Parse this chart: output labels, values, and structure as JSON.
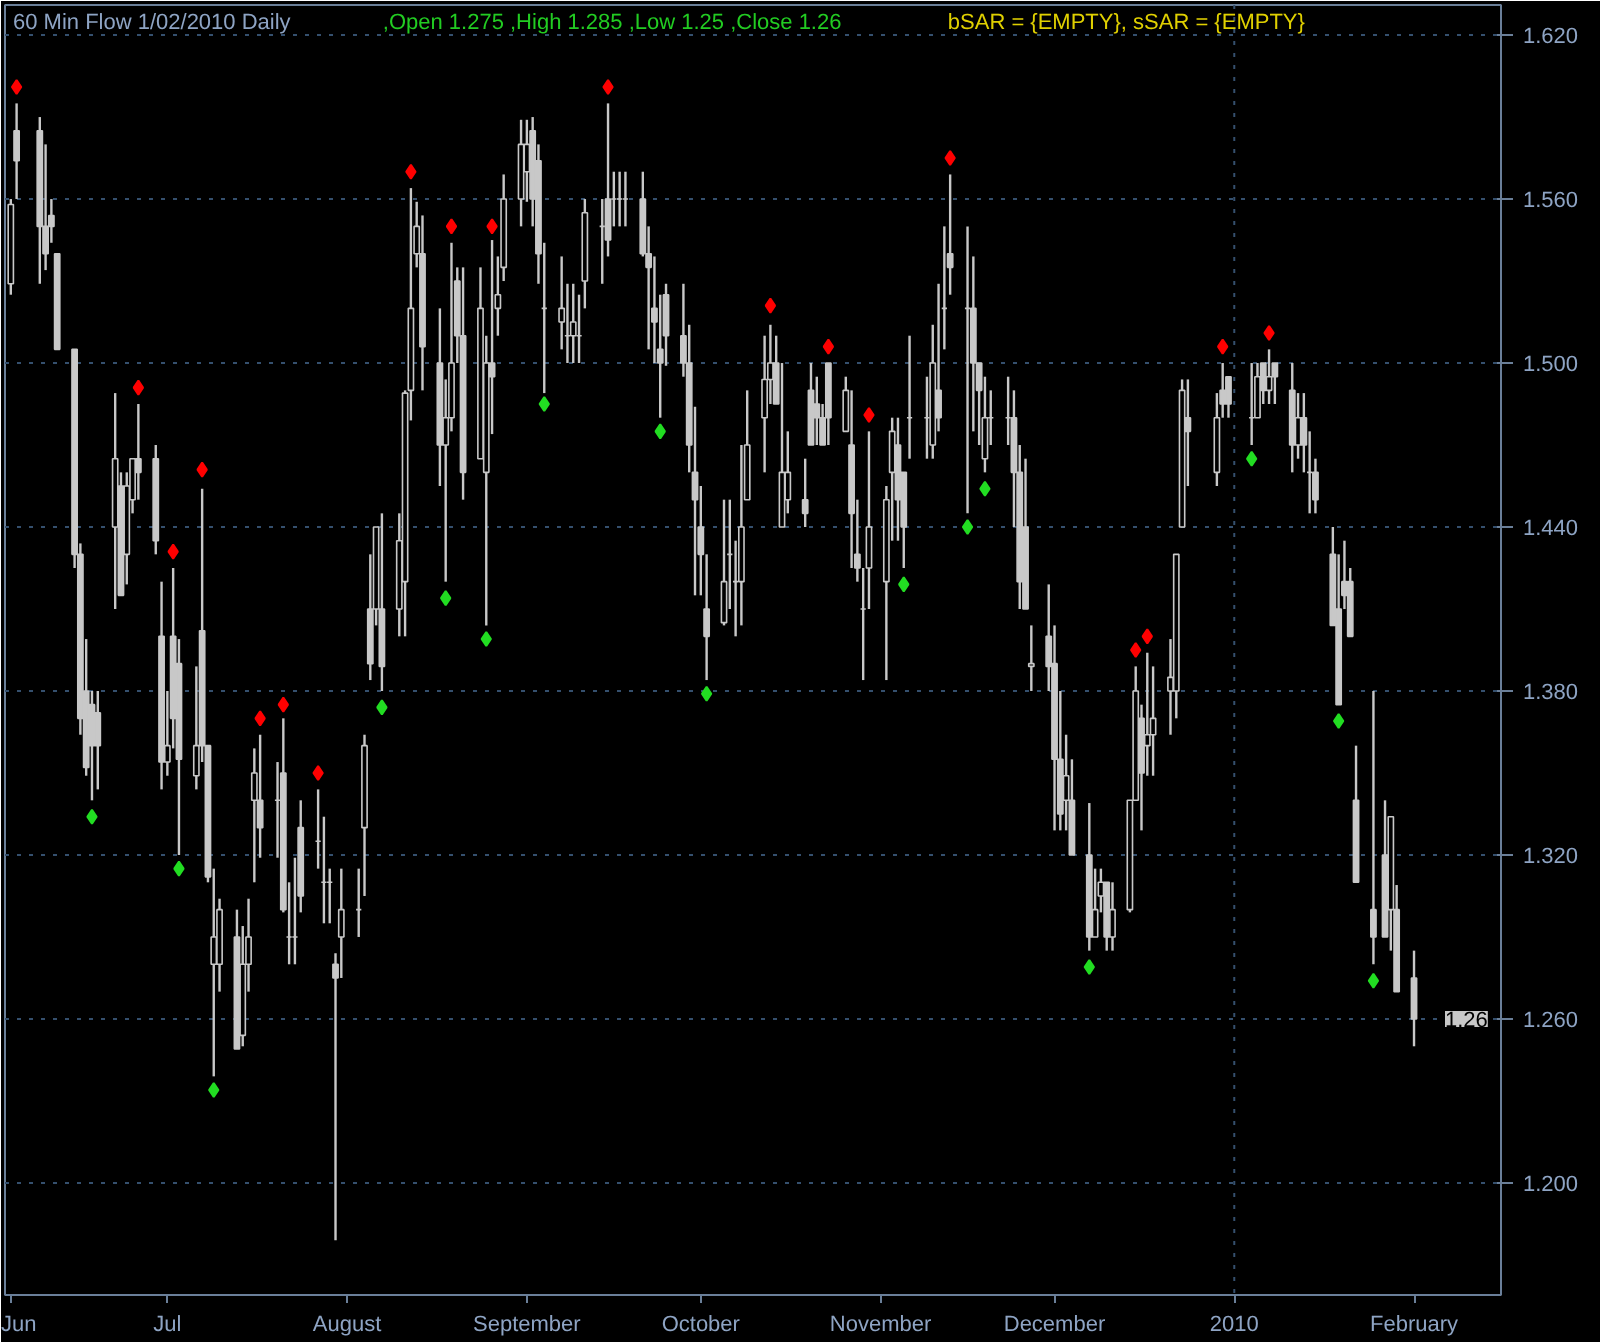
{
  "chart_data": {
    "type": "candlestick",
    "title": "60 Min Flow  1/02/2010  Daily",
    "subtitle": ",Open 1.275 ,High 1.285 ,Low 1.25 ,Close 1.26",
    "annotations": [
      "bSAR = {EMPTY}, sSAR = {EMPTY}",
      "1.26"
    ],
    "xlim": [
      "2009-06-03",
      "2010-02-16"
    ],
    "color": "#c8c8c8",
    "x": [
      "2009-06-04",
      "2009-06-05",
      "2009-06-09",
      "2009-06-10",
      "2009-06-11",
      "2009-06-12",
      "2009-06-15",
      "2009-06-16",
      "2009-06-17",
      "2009-06-18",
      "2009-06-19",
      "2009-06-22",
      "2009-06-23",
      "2009-06-24",
      "2009-06-25",
      "2009-06-26",
      "2009-06-29",
      "2009-06-30",
      "2009-07-01",
      "2009-07-02",
      "2009-07-03",
      "2009-07-06",
      "2009-07-07",
      "2009-07-08",
      "2009-07-09",
      "2009-07-10",
      "2009-07-13",
      "2009-07-14",
      "2009-07-15",
      "2009-07-16",
      "2009-07-17",
      "2009-07-20",
      "2009-07-21",
      "2009-07-22",
      "2009-07-23",
      "2009-07-24",
      "2009-07-27",
      "2009-07-28",
      "2009-07-29",
      "2009-07-30",
      "2009-07-31",
      "2009-08-03",
      "2009-08-04",
      "2009-08-05",
      "2009-08-06",
      "2009-08-07",
      "2009-08-10",
      "2009-08-11",
      "2009-08-12",
      "2009-08-13",
      "2009-08-14",
      "2009-08-17",
      "2009-08-18",
      "2009-08-19",
      "2009-08-20",
      "2009-08-21",
      "2009-08-24",
      "2009-08-25",
      "2009-08-26",
      "2009-08-27",
      "2009-08-28",
      "2009-08-31",
      "2009-09-01",
      "2009-09-02",
      "2009-09-03",
      "2009-09-04",
      "2009-09-07",
      "2009-09-08",
      "2009-09-09",
      "2009-09-10",
      "2009-09-11",
      "2009-09-14",
      "2009-09-15",
      "2009-09-16",
      "2009-09-17",
      "2009-09-18",
      "2009-09-21",
      "2009-09-22",
      "2009-09-23",
      "2009-09-24",
      "2009-09-25",
      "2009-09-28",
      "2009-09-29",
      "2009-09-30",
      "2009-10-01",
      "2009-10-02",
      "2009-10-05",
      "2009-10-06",
      "2009-10-07",
      "2009-10-08",
      "2009-10-09",
      "2009-10-12",
      "2009-10-13",
      "2009-10-14",
      "2009-10-15",
      "2009-10-16",
      "2009-10-19",
      "2009-10-20",
      "2009-10-21",
      "2009-10-22",
      "2009-10-23",
      "2009-10-26",
      "2009-10-27",
      "2009-10-28",
      "2009-10-29",
      "2009-10-30",
      "2009-11-02",
      "2009-11-03",
      "2009-11-04",
      "2009-11-05",
      "2009-11-06",
      "2009-11-09",
      "2009-11-10",
      "2009-11-11",
      "2009-11-12",
      "2009-11-13",
      "2009-11-16",
      "2009-11-17",
      "2009-11-18",
      "2009-11-19",
      "2009-11-20",
      "2009-11-23",
      "2009-11-24",
      "2009-11-25",
      "2009-11-26",
      "2009-11-27",
      "2009-11-30",
      "2009-12-01",
      "2009-12-02",
      "2009-12-03",
      "2009-12-04",
      "2009-12-07",
      "2009-12-08",
      "2009-12-09",
      "2009-12-10",
      "2009-12-11",
      "2009-12-14",
      "2009-12-15",
      "2009-12-16",
      "2009-12-17",
      "2009-12-18",
      "2009-12-21",
      "2009-12-22",
      "2009-12-23",
      "2009-12-24",
      "2009-12-29",
      "2009-12-30",
      "2009-12-31",
      "2010-01-04",
      "2010-01-05",
      "2010-01-06",
      "2010-01-07",
      "2010-01-08",
      "2010-01-11",
      "2010-01-12",
      "2010-01-13",
      "2010-01-14",
      "2010-01-15",
      "2010-01-18",
      "2010-01-19",
      "2010-01-20",
      "2010-01-21",
      "2010-01-22",
      "2010-01-25",
      "2010-01-27",
      "2010-01-28",
      "2010-01-29",
      "2010-02-01"
    ],
    "ohlc": [
      [
        1.529,
        1.56,
        1.525,
        1.558
      ],
      [
        1.585,
        1.595,
        1.56,
        1.574
      ],
      [
        1.585,
        1.59,
        1.529,
        1.55
      ],
      [
        1.55,
        1.58,
        1.534,
        1.54
      ],
      [
        1.554,
        1.56,
        1.544,
        1.55
      ],
      [
        1.54,
        1.54,
        1.505,
        1.505
      ],
      [
        1.505,
        1.505,
        1.425,
        1.43
      ],
      [
        1.43,
        1.434,
        1.364,
        1.37
      ],
      [
        1.38,
        1.399,
        1.349,
        1.352
      ],
      [
        1.375,
        1.38,
        1.34,
        1.36
      ],
      [
        1.372,
        1.38,
        1.344,
        1.36
      ],
      [
        1.44,
        1.489,
        1.41,
        1.465
      ],
      [
        1.455,
        1.46,
        1.415,
        1.415
      ],
      [
        1.43,
        1.46,
        1.419,
        1.455
      ],
      [
        1.45,
        1.465,
        1.445,
        1.465
      ],
      [
        1.465,
        1.485,
        1.45,
        1.46
      ],
      [
        1.465,
        1.47,
        1.43,
        1.435
      ],
      [
        1.4,
        1.42,
        1.344,
        1.354
      ],
      [
        1.354,
        1.38,
        1.349,
        1.36
      ],
      [
        1.4,
        1.425,
        1.359,
        1.37
      ],
      [
        1.39,
        1.399,
        1.32,
        1.355
      ],
      [
        1.349,
        1.389,
        1.344,
        1.36
      ],
      [
        1.402,
        1.454,
        1.354,
        1.36
      ],
      [
        1.36,
        1.36,
        1.31,
        1.312
      ],
      [
        1.28,
        1.315,
        1.239,
        1.29
      ],
      [
        1.28,
        1.304,
        1.27,
        1.3
      ],
      [
        1.29,
        1.3,
        1.249,
        1.249
      ],
      [
        1.254,
        1.294,
        1.25,
        1.28
      ],
      [
        1.28,
        1.304,
        1.27,
        1.29
      ],
      [
        1.34,
        1.359,
        1.31,
        1.35
      ],
      [
        1.34,
        1.364,
        1.319,
        1.33
      ],
      [
        1.34,
        1.354,
        1.319,
        1.34
      ],
      [
        1.35,
        1.37,
        1.299,
        1.3
      ],
      [
        1.29,
        1.31,
        1.28,
        1.29
      ],
      [
        1.29,
        1.319,
        1.28,
        1.29
      ],
      [
        1.33,
        1.34,
        1.299,
        1.305
      ],
      [
        1.325,
        1.344,
        1.315,
        1.325
      ],
      [
        1.31,
        1.334,
        1.295,
        1.31
      ],
      [
        1.31,
        1.315,
        1.295,
        1.31
      ],
      [
        1.28,
        1.284,
        1.179,
        1.275
      ],
      [
        1.29,
        1.315,
        1.275,
        1.3
      ],
      [
        1.3,
        1.315,
        1.29,
        1.3
      ],
      [
        1.33,
        1.364,
        1.305,
        1.36
      ],
      [
        1.41,
        1.43,
        1.384,
        1.39
      ],
      [
        1.41,
        1.44,
        1.404,
        1.44
      ],
      [
        1.41,
        1.445,
        1.38,
        1.389
      ],
      [
        1.41,
        1.445,
        1.4,
        1.435
      ],
      [
        1.42,
        1.49,
        1.4,
        1.489
      ],
      [
        1.49,
        1.564,
        1.479,
        1.52
      ],
      [
        1.54,
        1.559,
        1.535,
        1.55
      ],
      [
        1.54,
        1.554,
        1.49,
        1.506
      ],
      [
        1.5,
        1.52,
        1.455,
        1.47
      ],
      [
        1.47,
        1.494,
        1.42,
        1.48
      ],
      [
        1.48,
        1.544,
        1.475,
        1.5
      ],
      [
        1.53,
        1.535,
        1.5,
        1.51
      ],
      [
        1.51,
        1.535,
        1.45,
        1.46
      ],
      [
        1.465,
        1.535,
        1.465,
        1.52
      ],
      [
        1.46,
        1.51,
        1.404,
        1.5
      ],
      [
        1.5,
        1.545,
        1.474,
        1.495
      ],
      [
        1.52,
        1.539,
        1.51,
        1.525
      ],
      [
        1.535,
        1.569,
        1.53,
        1.56
      ],
      [
        1.56,
        1.589,
        1.55,
        1.58
      ],
      [
        1.57,
        1.589,
        1.559,
        1.58
      ],
      [
        1.585,
        1.59,
        1.55,
        1.56
      ],
      [
        1.574,
        1.58,
        1.529,
        1.54
      ],
      [
        1.52,
        1.544,
        1.489,
        1.52
      ],
      [
        1.515,
        1.539,
        1.505,
        1.52
      ],
      [
        1.51,
        1.529,
        1.5,
        1.51
      ],
      [
        1.51,
        1.529,
        1.5,
        1.515
      ],
      [
        1.51,
        1.525,
        1.5,
        1.51
      ],
      [
        1.53,
        1.56,
        1.52,
        1.555
      ],
      [
        1.55,
        1.56,
        1.529,
        1.55
      ],
      [
        1.56,
        1.595,
        1.539,
        1.545
      ],
      [
        1.56,
        1.57,
        1.55,
        1.56
      ],
      [
        1.56,
        1.57,
        1.55,
        1.56
      ],
      [
        1.56,
        1.57,
        1.55,
        1.56
      ],
      [
        1.56,
        1.57,
        1.539,
        1.54
      ],
      [
        1.54,
        1.55,
        1.505,
        1.535
      ],
      [
        1.52,
        1.539,
        1.5,
        1.515
      ],
      [
        1.505,
        1.525,
        1.48,
        1.5
      ],
      [
        1.525,
        1.529,
        1.499,
        1.51
      ],
      [
        1.51,
        1.529,
        1.495,
        1.5
      ],
      [
        1.5,
        1.514,
        1.46,
        1.47
      ],
      [
        1.46,
        1.484,
        1.415,
        1.45
      ],
      [
        1.44,
        1.455,
        1.415,
        1.43
      ],
      [
        1.41,
        1.43,
        1.384,
        1.4
      ],
      [
        1.405,
        1.45,
        1.404,
        1.42
      ],
      [
        1.43,
        1.45,
        1.41,
        1.43
      ],
      [
        1.42,
        1.435,
        1.4,
        1.42
      ],
      [
        1.42,
        1.47,
        1.404,
        1.44
      ],
      [
        1.45,
        1.49,
        1.45,
        1.47
      ],
      [
        1.48,
        1.51,
        1.46,
        1.494
      ],
      [
        1.494,
        1.514,
        1.485,
        1.5
      ],
      [
        1.5,
        1.51,
        1.485,
        1.485
      ],
      [
        1.44,
        1.5,
        1.44,
        1.46
      ],
      [
        1.45,
        1.475,
        1.445,
        1.46
      ],
      [
        1.45,
        1.465,
        1.44,
        1.445
      ],
      [
        1.49,
        1.5,
        1.47,
        1.47
      ],
      [
        1.485,
        1.495,
        1.47,
        1.48
      ],
      [
        1.48,
        1.485,
        1.47,
        1.47
      ],
      [
        1.5,
        1.5,
        1.47,
        1.48
      ],
      [
        1.475,
        1.495,
        1.475,
        1.49
      ],
      [
        1.47,
        1.49,
        1.425,
        1.445
      ],
      [
        1.43,
        1.45,
        1.42,
        1.425
      ],
      [
        1.41,
        1.425,
        1.384,
        1.41
      ],
      [
        1.425,
        1.475,
        1.41,
        1.44
      ],
      [
        1.42,
        1.455,
        1.384,
        1.45
      ],
      [
        1.46,
        1.48,
        1.435,
        1.475
      ],
      [
        1.47,
        1.48,
        1.435,
        1.45
      ],
      [
        1.46,
        1.46,
        1.425,
        1.44
      ],
      [
        1.48,
        1.51,
        1.465,
        1.48
      ],
      [
        1.48,
        1.495,
        1.465,
        1.48
      ],
      [
        1.47,
        1.514,
        1.465,
        1.5
      ],
      [
        1.49,
        1.529,
        1.475,
        1.48
      ],
      [
        1.52,
        1.55,
        1.505,
        1.52
      ],
      [
        1.54,
        1.569,
        1.525,
        1.535
      ],
      [
        1.52,
        1.55,
        1.445,
        1.52
      ],
      [
        1.52,
        1.539,
        1.475,
        1.5
      ],
      [
        1.5,
        1.5,
        1.47,
        1.49
      ],
      [
        1.465,
        1.495,
        1.46,
        1.48
      ],
      [
        1.48,
        1.49,
        1.47,
        1.48
      ],
      [
        1.48,
        1.495,
        1.47,
        1.48
      ],
      [
        1.48,
        1.49,
        1.44,
        1.46
      ],
      [
        1.46,
        1.47,
        1.41,
        1.42
      ],
      [
        1.44,
        1.465,
        1.41,
        1.41
      ],
      [
        1.389,
        1.404,
        1.38,
        1.39
      ],
      [
        1.4,
        1.419,
        1.38,
        1.389
      ],
      [
        1.39,
        1.404,
        1.329,
        1.355
      ],
      [
        1.355,
        1.38,
        1.329,
        1.335
      ],
      [
        1.34,
        1.364,
        1.329,
        1.349
      ],
      [
        1.34,
        1.355,
        1.32,
        1.32
      ],
      [
        1.32,
        1.339,
        1.285,
        1.29
      ],
      [
        1.29,
        1.315,
        1.29,
        1.3
      ],
      [
        1.305,
        1.315,
        1.299,
        1.31
      ],
      [
        1.31,
        1.31,
        1.285,
        1.29
      ],
      [
        1.29,
        1.31,
        1.285,
        1.3
      ],
      [
        1.3,
        1.34,
        1.299,
        1.34
      ],
      [
        1.34,
        1.389,
        1.34,
        1.38
      ],
      [
        1.37,
        1.375,
        1.329,
        1.35
      ],
      [
        1.36,
        1.394,
        1.349,
        1.364
      ],
      [
        1.364,
        1.389,
        1.349,
        1.37
      ],
      [
        1.38,
        1.399,
        1.364,
        1.385
      ],
      [
        1.38,
        1.43,
        1.37,
        1.43
      ],
      [
        1.44,
        1.494,
        1.44,
        1.49
      ],
      [
        1.48,
        1.494,
        1.455,
        1.475
      ],
      [
        1.46,
        1.489,
        1.455,
        1.48
      ],
      [
        1.49,
        1.5,
        1.48,
        1.485
      ],
      [
        1.495,
        1.495,
        1.48,
        1.485
      ],
      [
        1.48,
        1.5,
        1.47,
        1.48
      ],
      [
        1.48,
        1.5,
        1.48,
        1.495
      ],
      [
        1.5,
        1.5,
        1.485,
        1.49
      ],
      [
        1.49,
        1.505,
        1.485,
        1.495
      ],
      [
        1.5,
        1.5,
        1.485,
        1.495
      ],
      [
        1.49,
        1.5,
        1.46,
        1.47
      ],
      [
        1.47,
        1.489,
        1.465,
        1.48
      ],
      [
        1.48,
        1.489,
        1.46,
        1.47
      ],
      [
        1.46,
        1.475,
        1.445,
        1.46
      ],
      [
        1.46,
        1.465,
        1.445,
        1.45
      ],
      [
        1.43,
        1.44,
        1.404,
        1.404
      ],
      [
        1.41,
        1.43,
        1.375,
        1.375
      ],
      [
        1.42,
        1.435,
        1.41,
        1.415
      ],
      [
        1.42,
        1.425,
        1.4,
        1.4
      ],
      [
        1.34,
        1.36,
        1.31,
        1.31
      ],
      [
        1.3,
        1.38,
        1.28,
        1.29
      ],
      [
        1.32,
        1.34,
        1.29,
        1.29
      ],
      [
        1.3,
        1.334,
        1.285,
        1.334
      ],
      [
        1.3,
        1.309,
        1.27,
        1.27
      ],
      [
        1.275,
        1.285,
        1.25,
        1.26
      ]
    ],
    "series": [
      {
        "type": "scatter",
        "marker": "diamond",
        "color": "#ff0000",
        "x": [
          "2009-06-05",
          "2009-06-26",
          "2009-07-02",
          "2009-07-07",
          "2009-07-17",
          "2009-07-21",
          "2009-07-27",
          "2009-08-12",
          "2009-08-19",
          "2009-08-26",
          "2009-09-15",
          "2009-10-13",
          "2009-10-23",
          "2009-10-30",
          "2009-11-13",
          "2009-12-15",
          "2009-12-17",
          "2009-12-30",
          "2010-01-07"
        ],
        "values": [
          1.601,
          1.491,
          1.431,
          1.461,
          1.37,
          1.375,
          1.35,
          1.57,
          1.55,
          1.55,
          1.601,
          1.521,
          1.506,
          1.481,
          1.575,
          1.395,
          1.4,
          1.506,
          1.511
        ]
      },
      {
        "type": "scatter",
        "marker": "diamond",
        "color": "#22dd22",
        "x": [
          "2009-06-18",
          "2009-07-03",
          "2009-07-09",
          "2009-08-07",
          "2009-08-18",
          "2009-08-25",
          "2009-09-04",
          "2009-09-24",
          "2009-10-02",
          "2009-11-05",
          "2009-11-16",
          "2009-11-19",
          "2009-12-07",
          "2010-01-04",
          "2010-01-19",
          "2010-01-25"
        ],
        "values": [
          1.334,
          1.315,
          1.234,
          1.374,
          1.414,
          1.399,
          1.485,
          1.475,
          1.379,
          1.419,
          1.44,
          1.454,
          1.279,
          1.465,
          1.369,
          1.274
        ]
      }
    ],
    "ylim": [
      1.159,
      1.631
    ],
    "yticks": [
      {
        "value": 1.2,
        "label": "1.200"
      },
      {
        "value": 1.26,
        "label": "1.260"
      },
      {
        "value": 1.32,
        "label": "1.320"
      },
      {
        "value": 1.38,
        "label": "1.380"
      },
      {
        "value": 1.44,
        "label": "1.440"
      },
      {
        "value": 1.5,
        "label": "1.500"
      },
      {
        "value": 1.56,
        "label": "1.560"
      },
      {
        "value": 1.62,
        "label": "1.620"
      }
    ],
    "xticks": [
      {
        "value": "2009-06-04",
        "label": "Jun"
      },
      {
        "value": "2009-07-01",
        "label": "Jul"
      },
      {
        "value": "2009-08-01",
        "label": "August"
      },
      {
        "value": "2009-09-01",
        "label": "September"
      },
      {
        "value": "2009-10-01",
        "label": "October"
      },
      {
        "value": "2009-11-01",
        "label": "November"
      },
      {
        "value": "2009-12-01",
        "label": "December"
      },
      {
        "value": "2010-01-01",
        "label": "2010"
      },
      {
        "value": "2010-02-01",
        "label": "February"
      }
    ],
    "ref_lines": [
      {
        "axis": "x",
        "value": "2010-01-01",
        "line_style": "dotted"
      }
    ],
    "grid": "y"
  }
}
